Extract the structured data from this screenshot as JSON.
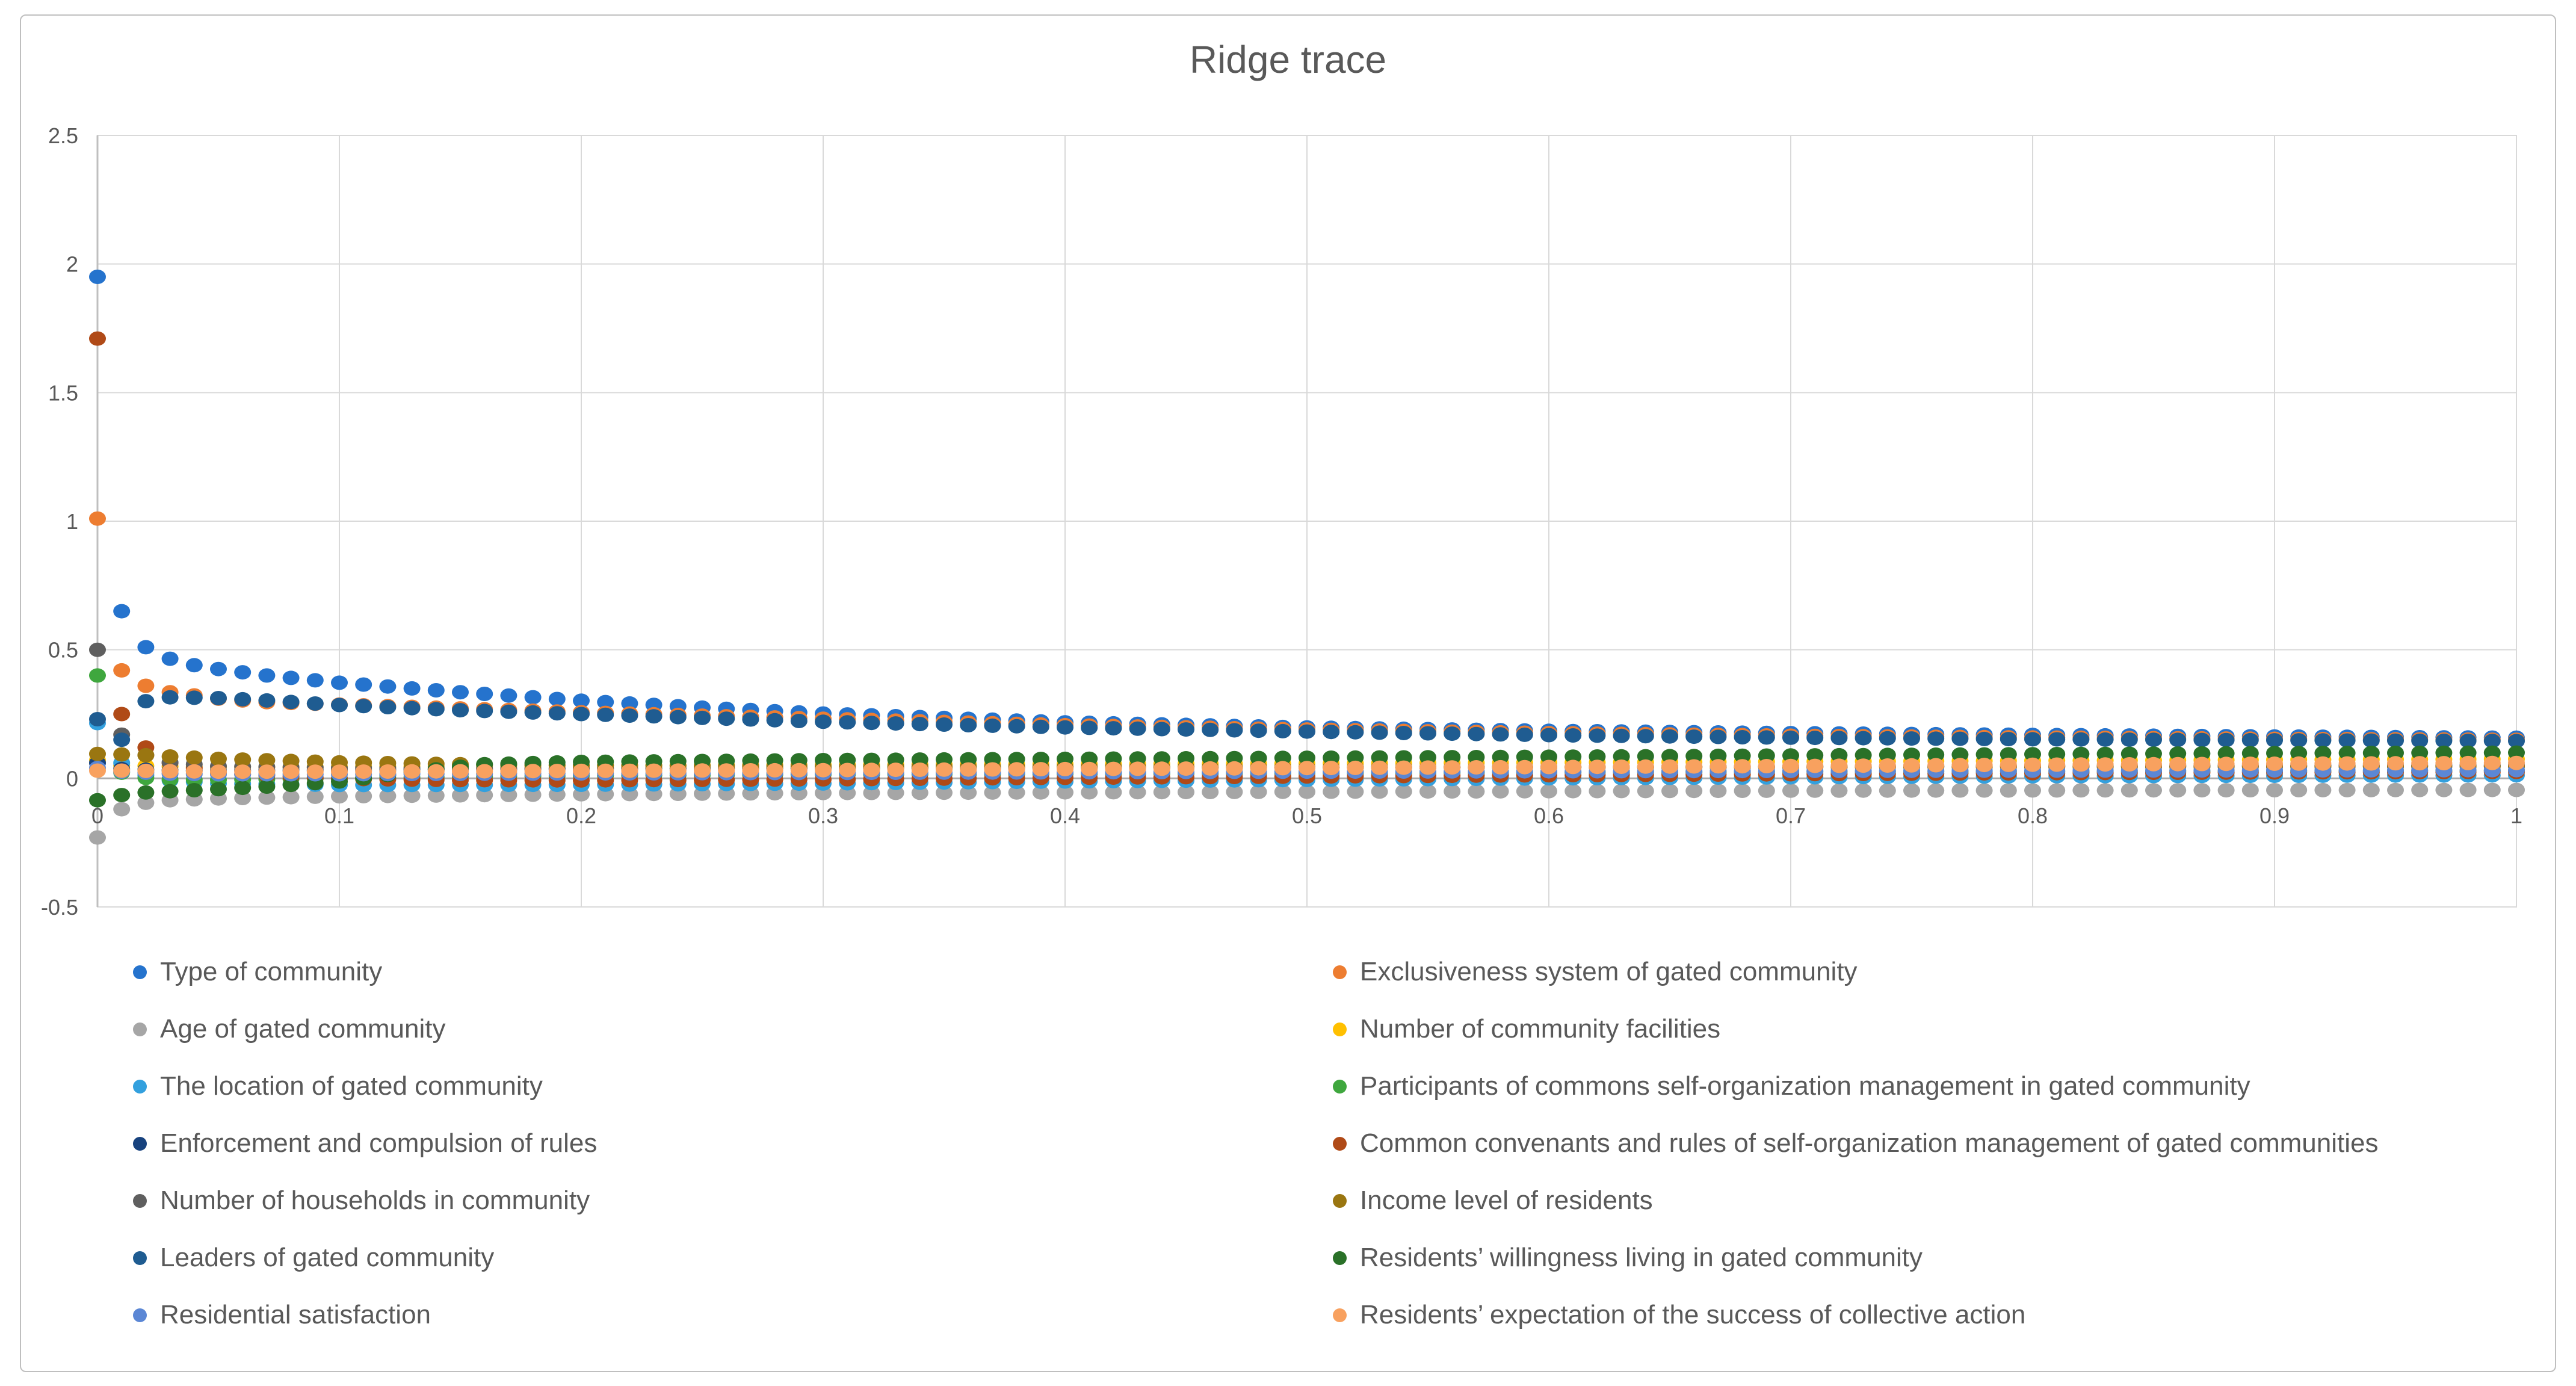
{
  "chart_data": {
    "type": "scatter",
    "title": "Ridge trace",
    "xlabel": "",
    "ylabel": "",
    "xlim": [
      0,
      1
    ],
    "ylim": [
      -0.5,
      2.5
    ],
    "grid": true,
    "legend_position": "bottom-two-columns",
    "x_tick_labels": [
      "0",
      "0.1",
      "0.2",
      "0.3",
      "0.4",
      "0.5",
      "0.6",
      "0.7",
      "0.8",
      "0.9",
      "1"
    ],
    "x_tick_values": [
      0,
      0.1,
      0.2,
      0.3,
      0.4,
      0.5,
      0.6,
      0.7,
      0.8,
      0.9,
      1
    ],
    "y_tick_labels": [
      "-0.5",
      "0",
      "0.5",
      "1",
      "1.5",
      "2",
      "2.5"
    ],
    "y_tick_values": [
      -0.5,
      0,
      0.5,
      1,
      1.5,
      2,
      2.5
    ],
    "k_step": 0.01,
    "series": [
      {
        "label": "Type of community",
        "color": "#2573CD",
        "points": [
          [
            0,
            1.95
          ],
          [
            0.01,
            0.65
          ],
          [
            0.02,
            0.51
          ],
          [
            0.03,
            0.465
          ],
          [
            0.04,
            0.44
          ],
          [
            0.05,
            0.425
          ],
          [
            0.07,
            0.4
          ],
          [
            0.1,
            0.372
          ],
          [
            0.15,
            0.335
          ],
          [
            0.2,
            0.302
          ],
          [
            0.25,
            0.275
          ],
          [
            0.3,
            0.252
          ],
          [
            0.4,
            0.218
          ],
          [
            0.5,
            0.198
          ],
          [
            0.6,
            0.185
          ],
          [
            0.7,
            0.176
          ],
          [
            0.8,
            0.169
          ],
          [
            0.9,
            0.163
          ],
          [
            1,
            0.158
          ]
        ]
      },
      {
        "label": "Exclusiveness system of gated community",
        "color": "#ED7D31",
        "points": [
          [
            0,
            1.01
          ],
          [
            0.01,
            0.42
          ],
          [
            0.02,
            0.36
          ],
          [
            0.03,
            0.335
          ],
          [
            0.05,
            0.31
          ],
          [
            0.07,
            0.296
          ],
          [
            0.1,
            0.287
          ],
          [
            0.15,
            0.272
          ],
          [
            0.2,
            0.257
          ],
          [
            0.25,
            0.244
          ],
          [
            0.3,
            0.232
          ],
          [
            0.4,
            0.207
          ],
          [
            0.5,
            0.19
          ],
          [
            0.6,
            0.176
          ],
          [
            0.7,
            0.166
          ],
          [
            0.8,
            0.159
          ],
          [
            0.9,
            0.154
          ],
          [
            1,
            0.15
          ]
        ]
      },
      {
        "label": "Age of gated community",
        "color": "#A6A6A6",
        "points": [
          [
            0,
            -0.23
          ],
          [
            0.01,
            -0.12
          ],
          [
            0.02,
            -0.095
          ],
          [
            0.03,
            -0.085
          ],
          [
            0.05,
            -0.078
          ],
          [
            0.1,
            -0.07
          ],
          [
            0.2,
            -0.062
          ],
          [
            0.3,
            -0.057
          ],
          [
            0.5,
            -0.052
          ],
          [
            0.7,
            -0.048
          ],
          [
            0.9,
            -0.046
          ],
          [
            1,
            -0.045
          ]
        ]
      },
      {
        "label": "Number of community facilities",
        "color": "#FFC000",
        "points": [
          [
            0,
            0.07
          ],
          [
            0.01,
            0.05
          ],
          [
            0.03,
            0.046
          ],
          [
            0.05,
            0.044
          ],
          [
            0.1,
            0.045
          ],
          [
            0.2,
            0.05
          ],
          [
            0.3,
            0.053
          ],
          [
            0.5,
            0.058
          ],
          [
            0.7,
            0.065
          ],
          [
            0.9,
            0.072
          ],
          [
            1,
            0.075
          ]
        ]
      },
      {
        "label": "The location of gated community",
        "color": "#33A0DE",
        "points": [
          [
            0,
            0.215
          ],
          [
            0.01,
            0.06
          ],
          [
            0.02,
            0.012
          ],
          [
            0.03,
            -0.008
          ],
          [
            0.05,
            -0.02
          ],
          [
            0.1,
            -0.026
          ],
          [
            0.2,
            -0.025
          ],
          [
            0.3,
            -0.02
          ],
          [
            0.4,
            -0.012
          ],
          [
            0.5,
            -0.006
          ],
          [
            0.6,
            0.0
          ],
          [
            0.7,
            0.004
          ],
          [
            0.8,
            0.008
          ],
          [
            0.9,
            0.01
          ],
          [
            1,
            0.012
          ]
        ]
      },
      {
        "label": "Participants of commons self-organization management in gated community",
        "color": "#3FA73E",
        "points": [
          [
            0,
            0.4
          ],
          [
            0.01,
            0.022
          ],
          [
            0.02,
            0.002
          ],
          [
            0.03,
            -0.004
          ],
          [
            0.05,
            -0.006
          ],
          [
            0.1,
            0.0
          ],
          [
            0.2,
            0.01
          ],
          [
            0.3,
            0.015
          ],
          [
            0.5,
            0.02
          ],
          [
            0.7,
            0.025
          ],
          [
            0.9,
            0.028
          ],
          [
            1,
            0.03
          ]
        ]
      },
      {
        "label": "Enforcement and compulsion of rules",
        "color": "#17427E",
        "points": [
          [
            0,
            0.06
          ],
          [
            0.01,
            0.036
          ],
          [
            0.03,
            0.031
          ],
          [
            0.05,
            0.03
          ],
          [
            0.1,
            0.032
          ],
          [
            0.2,
            0.036
          ],
          [
            0.3,
            0.038
          ],
          [
            0.5,
            0.042
          ],
          [
            0.7,
            0.046
          ],
          [
            0.9,
            0.05
          ],
          [
            1,
            0.051
          ]
        ]
      },
      {
        "label": "Common convenants and rules of self-organization management of gated communities",
        "color": "#B04A17",
        "points": [
          [
            0,
            1.71
          ],
          [
            0.01,
            0.25
          ],
          [
            0.02,
            0.12
          ],
          [
            0.03,
            0.06
          ],
          [
            0.05,
            0.02
          ],
          [
            0.1,
            -0.002
          ],
          [
            0.15,
            -0.007
          ],
          [
            0.2,
            -0.008
          ],
          [
            0.3,
            -0.004
          ],
          [
            0.4,
            0.002
          ],
          [
            0.5,
            0.007
          ],
          [
            0.6,
            0.012
          ],
          [
            0.7,
            0.016
          ],
          [
            0.8,
            0.02
          ],
          [
            0.9,
            0.023
          ],
          [
            1,
            0.025
          ]
        ]
      },
      {
        "label": "Number of households in community",
        "color": "#5F5F5F",
        "points": [
          [
            0,
            0.5
          ],
          [
            0.01,
            0.17
          ],
          [
            0.02,
            0.09
          ],
          [
            0.03,
            0.062
          ],
          [
            0.05,
            0.047
          ],
          [
            0.1,
            0.04
          ],
          [
            0.2,
            0.039
          ],
          [
            0.3,
            0.04
          ],
          [
            0.5,
            0.042
          ],
          [
            0.7,
            0.044
          ],
          [
            0.9,
            0.046
          ],
          [
            1,
            0.047
          ]
        ]
      },
      {
        "label": "Income level of residents",
        "color": "#9A7611",
        "points": [
          [
            0,
            0.095
          ],
          [
            0.01,
            0.093
          ],
          [
            0.02,
            0.09
          ],
          [
            0.03,
            0.085
          ],
          [
            0.05,
            0.076
          ],
          [
            0.1,
            0.062
          ],
          [
            0.15,
            0.055
          ],
          [
            0.2,
            0.05
          ],
          [
            0.3,
            0.046
          ],
          [
            0.5,
            0.043
          ],
          [
            0.7,
            0.044
          ],
          [
            0.9,
            0.045
          ],
          [
            1,
            0.046
          ]
        ]
      },
      {
        "label": "Leaders of gated community",
        "color": "#1F5C91",
        "points": [
          [
            0,
            0.23
          ],
          [
            0.01,
            0.15
          ],
          [
            0.02,
            0.3
          ],
          [
            0.03,
            0.315
          ],
          [
            0.05,
            0.312
          ],
          [
            0.07,
            0.303
          ],
          [
            0.1,
            0.285
          ],
          [
            0.15,
            0.265
          ],
          [
            0.2,
            0.25
          ],
          [
            0.25,
            0.235
          ],
          [
            0.3,
            0.22
          ],
          [
            0.4,
            0.198
          ],
          [
            0.5,
            0.182
          ],
          [
            0.6,
            0.168
          ],
          [
            0.7,
            0.158
          ],
          [
            0.8,
            0.152
          ],
          [
            0.9,
            0.148
          ],
          [
            1,
            0.145
          ]
        ]
      },
      {
        "label": "Residents’ willingness living in gated community",
        "color": "#2A7128",
        "points": [
          [
            0,
            -0.085
          ],
          [
            0.01,
            -0.065
          ],
          [
            0.02,
            -0.055
          ],
          [
            0.03,
            -0.05
          ],
          [
            0.05,
            -0.042
          ],
          [
            0.07,
            -0.032
          ],
          [
            0.1,
            -0.012
          ],
          [
            0.13,
            0.025
          ],
          [
            0.16,
            0.055
          ],
          [
            0.2,
            0.064
          ],
          [
            0.3,
            0.071
          ],
          [
            0.4,
            0.076
          ],
          [
            0.5,
            0.08
          ],
          [
            0.6,
            0.084
          ],
          [
            0.7,
            0.089
          ],
          [
            0.8,
            0.094
          ],
          [
            0.9,
            0.098
          ],
          [
            1,
            0.1
          ]
        ]
      },
      {
        "label": "Residential satisfaction",
        "color": "#5B87D5",
        "points": [
          [
            0,
            0.04
          ],
          [
            0.01,
            0.026
          ],
          [
            0.03,
            0.018
          ],
          [
            0.05,
            0.016
          ],
          [
            0.1,
            0.016
          ],
          [
            0.2,
            0.019
          ],
          [
            0.3,
            0.021
          ],
          [
            0.5,
            0.026
          ],
          [
            0.7,
            0.029
          ],
          [
            0.9,
            0.031
          ],
          [
            1,
            0.032
          ]
        ]
      },
      {
        "label": "Residents’ expectation of the success of collective action",
        "color": "#F8A15F",
        "points": [
          [
            0,
            0.03
          ],
          [
            0.01,
            0.03
          ],
          [
            0.05,
            0.026
          ],
          [
            0.1,
            0.026
          ],
          [
            0.2,
            0.029
          ],
          [
            0.3,
            0.032
          ],
          [
            0.4,
            0.036
          ],
          [
            0.5,
            0.04
          ],
          [
            0.6,
            0.044
          ],
          [
            0.7,
            0.048
          ],
          [
            0.8,
            0.053
          ],
          [
            0.9,
            0.057
          ],
          [
            1,
            0.06
          ]
        ]
      }
    ]
  },
  "style_colors": {
    "title": "#595959",
    "tick_label": "#595959",
    "gridline": "#D9D9D9",
    "axis_line": "#BFBFBF",
    "zero_line": "#ABABAB",
    "figure_border": "#BFBFBF"
  }
}
